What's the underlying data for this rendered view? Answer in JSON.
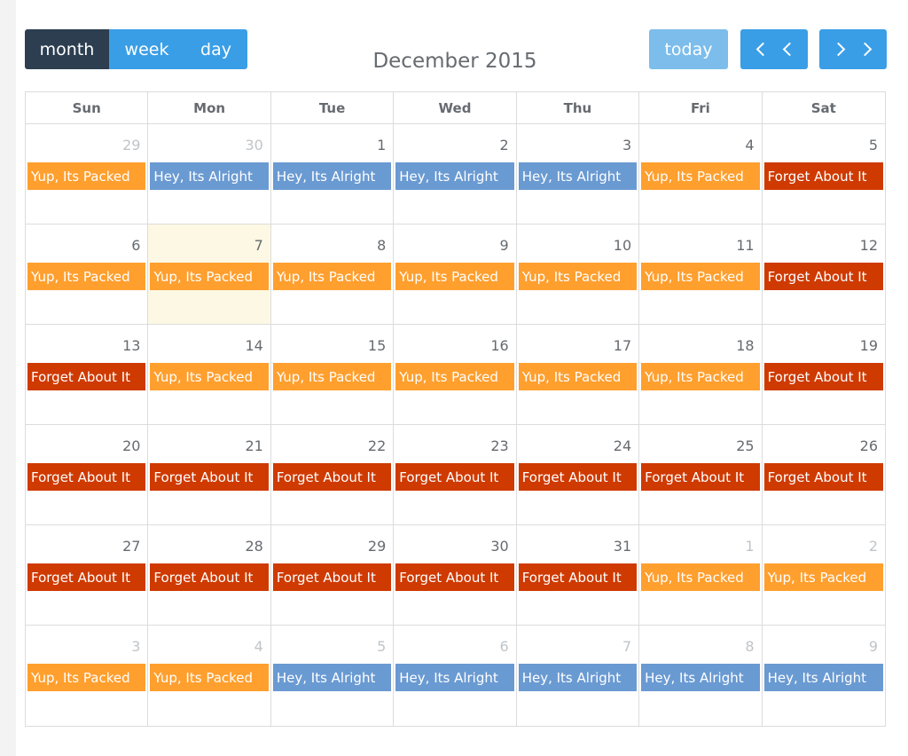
{
  "toolbar": {
    "views": [
      "month",
      "week",
      "day"
    ],
    "active_view": "month",
    "title": "December 2015",
    "today_label": "today"
  },
  "colors": {
    "packed": "#ff9f2e",
    "alright": "#6a9ad2",
    "forget": "#cf3a00",
    "today_bg": "#fcf8e3",
    "button": "#3a9ee6",
    "button_active": "#2c3e50"
  },
  "icons": {
    "prev": "chevron-left-icon",
    "next": "chevron-right-icon"
  },
  "weekdays": [
    "Sun",
    "Mon",
    "Tue",
    "Wed",
    "Thu",
    "Fri",
    "Sat"
  ],
  "weeks": [
    [
      {
        "day": "29",
        "other": true,
        "event": "Yup, Its Packed",
        "type": "packed"
      },
      {
        "day": "30",
        "other": true,
        "event": "Hey, Its Alright",
        "type": "alright"
      },
      {
        "day": "1",
        "event": "Hey, Its Alright",
        "type": "alright"
      },
      {
        "day": "2",
        "event": "Hey, Its Alright",
        "type": "alright"
      },
      {
        "day": "3",
        "event": "Hey, Its Alright",
        "type": "alright"
      },
      {
        "day": "4",
        "event": "Yup, Its Packed",
        "type": "packed"
      },
      {
        "day": "5",
        "event": "Forget About It",
        "type": "forget"
      }
    ],
    [
      {
        "day": "6",
        "event": "Yup, Its Packed",
        "type": "packed"
      },
      {
        "day": "7",
        "today": true,
        "event": "Yup, Its Packed",
        "type": "packed"
      },
      {
        "day": "8",
        "event": "Yup, Its Packed",
        "type": "packed"
      },
      {
        "day": "9",
        "event": "Yup, Its Packed",
        "type": "packed"
      },
      {
        "day": "10",
        "event": "Yup, Its Packed",
        "type": "packed"
      },
      {
        "day": "11",
        "event": "Yup, Its Packed",
        "type": "packed"
      },
      {
        "day": "12",
        "event": "Forget About It",
        "type": "forget"
      }
    ],
    [
      {
        "day": "13",
        "event": "Forget About It",
        "type": "forget"
      },
      {
        "day": "14",
        "event": "Yup, Its Packed",
        "type": "packed"
      },
      {
        "day": "15",
        "event": "Yup, Its Packed",
        "type": "packed"
      },
      {
        "day": "16",
        "event": "Yup, Its Packed",
        "type": "packed"
      },
      {
        "day": "17",
        "event": "Yup, Its Packed",
        "type": "packed"
      },
      {
        "day": "18",
        "event": "Yup, Its Packed",
        "type": "packed"
      },
      {
        "day": "19",
        "event": "Forget About It",
        "type": "forget"
      }
    ],
    [
      {
        "day": "20",
        "event": "Forget About It",
        "type": "forget"
      },
      {
        "day": "21",
        "event": "Forget About It",
        "type": "forget"
      },
      {
        "day": "22",
        "event": "Forget About It",
        "type": "forget"
      },
      {
        "day": "23",
        "event": "Forget About It",
        "type": "forget"
      },
      {
        "day": "24",
        "event": "Forget About It",
        "type": "forget"
      },
      {
        "day": "25",
        "event": "Forget About It",
        "type": "forget"
      },
      {
        "day": "26",
        "event": "Forget About It",
        "type": "forget"
      }
    ],
    [
      {
        "day": "27",
        "event": "Forget About It",
        "type": "forget"
      },
      {
        "day": "28",
        "event": "Forget About It",
        "type": "forget"
      },
      {
        "day": "29",
        "event": "Forget About It",
        "type": "forget"
      },
      {
        "day": "30",
        "event": "Forget About It",
        "type": "forget"
      },
      {
        "day": "31",
        "event": "Forget About It",
        "type": "forget"
      },
      {
        "day": "1",
        "other": true,
        "event": "Yup, Its Packed",
        "type": "packed"
      },
      {
        "day": "2",
        "other": true,
        "event": "Yup, Its Packed",
        "type": "packed"
      }
    ],
    [
      {
        "day": "3",
        "other": true,
        "event": "Yup, Its Packed",
        "type": "packed"
      },
      {
        "day": "4",
        "other": true,
        "event": "Yup, Its Packed",
        "type": "packed"
      },
      {
        "day": "5",
        "other": true,
        "event": "Hey, Its Alright",
        "type": "alright"
      },
      {
        "day": "6",
        "other": true,
        "event": "Hey, Its Alright",
        "type": "alright"
      },
      {
        "day": "7",
        "other": true,
        "event": "Hey, Its Alright",
        "type": "alright"
      },
      {
        "day": "8",
        "other": true,
        "event": "Hey, Its Alright",
        "type": "alright"
      },
      {
        "day": "9",
        "other": true,
        "event": "Hey, Its Alright",
        "type": "alright"
      }
    ]
  ]
}
